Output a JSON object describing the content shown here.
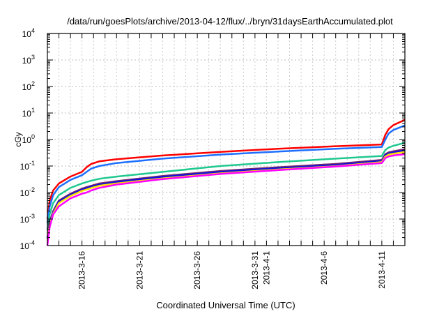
{
  "chart_data": {
    "type": "line",
    "title": "/data/run/goesPlots/archive/2013-04-12/flux/../bryn/31daysEarthAccumulated.plot",
    "xlabel": "Coordinated Universal Time (UTC)",
    "ylabel": "cGy",
    "yscale": "log",
    "ylim": [
      0.0001,
      10000
    ],
    "xlim_days_from_2013_3_13": [
      0,
      31
    ],
    "grid": true,
    "legend": "none",
    "y_ticks": [
      {
        "base": "10",
        "exp": "4",
        "value": 10000
      },
      {
        "base": "10",
        "exp": "3",
        "value": 1000
      },
      {
        "base": "10",
        "exp": "2",
        "value": 100
      },
      {
        "base": "10",
        "exp": "1",
        "value": 10
      },
      {
        "base": "10",
        "exp": "0",
        "value": 1
      },
      {
        "base": "10",
        "exp": "-1",
        "value": 0.1
      },
      {
        "base": "10",
        "exp": "-2",
        "value": 0.01
      },
      {
        "base": "10",
        "exp": "-3",
        "value": 0.001
      },
      {
        "base": "10",
        "exp": "-4",
        "value": 0.0001
      }
    ],
    "x_ticks": [
      {
        "label": "2013-3-16",
        "day": 3
      },
      {
        "label": "2013-3-21",
        "day": 8
      },
      {
        "label": "2013-3-26",
        "day": 13
      },
      {
        "label": "2013-3-31",
        "day": 18
      },
      {
        "label": "2013-4-1",
        "day": 19
      },
      {
        "label": "2013-4-6",
        "day": 24
      },
      {
        "label": "2013-4-11",
        "day": 29
      }
    ],
    "x": [
      0,
      0.2,
      0.5,
      1,
      2,
      3,
      3.4,
      3.8,
      4.5,
      6,
      10,
      15,
      20,
      25,
      29,
      29.3,
      29.6,
      30,
      31
    ],
    "series": [
      {
        "name": "red",
        "color": "#ff0000",
        "values": [
          0.001,
          0.005,
          0.012,
          0.022,
          0.04,
          0.06,
          0.09,
          0.12,
          0.15,
          0.18,
          0.25,
          0.34,
          0.45,
          0.56,
          0.65,
          1.5,
          2.5,
          3.5,
          5.5
        ]
      },
      {
        "name": "blue",
        "color": "#1e6fff",
        "values": [
          0.0007,
          0.003,
          0.008,
          0.016,
          0.03,
          0.045,
          0.06,
          0.08,
          0.1,
          0.13,
          0.19,
          0.27,
          0.35,
          0.45,
          0.52,
          1.0,
          1.7,
          2.3,
          3.4
        ]
      },
      {
        "name": "teal",
        "color": "#20c890",
        "values": [
          0.0004,
          0.0015,
          0.004,
          0.008,
          0.015,
          0.022,
          0.025,
          0.028,
          0.033,
          0.04,
          0.06,
          0.1,
          0.14,
          0.19,
          0.24,
          0.4,
          0.5,
          0.58,
          0.75
        ]
      },
      {
        "name": "purple",
        "color": "#7a2a6a",
        "values": [
          0.0002,
          0.0008,
          0.002,
          0.005,
          0.009,
          0.014,
          0.016,
          0.018,
          0.022,
          0.027,
          0.042,
          0.065,
          0.09,
          0.12,
          0.17,
          0.28,
          0.33,
          0.36,
          0.43
        ]
      },
      {
        "name": "dark-blue",
        "color": "#1010e0",
        "values": [
          0.00018,
          0.0007,
          0.0018,
          0.0046,
          0.0083,
          0.0128,
          0.0147,
          0.0166,
          0.02,
          0.025,
          0.039,
          0.06,
          0.083,
          0.11,
          0.157,
          0.26,
          0.3,
          0.33,
          0.39
        ]
      },
      {
        "name": "yellow",
        "color": "#ffe000",
        "values": [
          0.00015,
          0.0006,
          0.0016,
          0.004,
          0.0074,
          0.0115,
          0.013,
          0.0148,
          0.018,
          0.022,
          0.034,
          0.053,
          0.074,
          0.098,
          0.14,
          0.23,
          0.27,
          0.29,
          0.34
        ]
      },
      {
        "name": "magenta",
        "color": "#ff00ff",
        "values": [
          0.0001,
          0.0005,
          0.0015,
          0.003,
          0.006,
          0.009,
          0.01,
          0.012,
          0.015,
          0.02,
          0.032,
          0.05,
          0.07,
          0.095,
          0.13,
          0.2,
          0.23,
          0.25,
          0.28
        ]
      }
    ]
  }
}
